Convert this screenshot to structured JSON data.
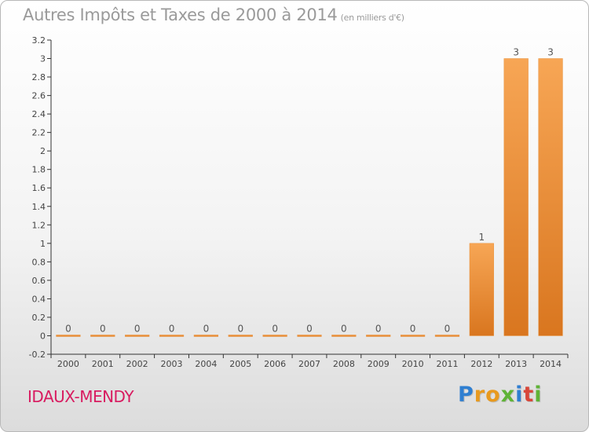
{
  "header": {
    "title": "Autres Impôts et Taxes de 2000 à 2014",
    "subtitle": "(en milliers d'€)"
  },
  "footer": {
    "commune": "IDAUX-MENDY",
    "logo_letters": [
      "P",
      "r",
      "o",
      "x",
      "i",
      "t",
      "i"
    ],
    "logo_colors": [
      "#2f7fd1",
      "#e89a1f",
      "#e89a1f",
      "#5fb336",
      "#2f7fd1",
      "#d8473a",
      "#5fb336"
    ]
  },
  "chart_data": {
    "type": "bar",
    "title": "Autres Impôts et Taxes de 2000 à 2014",
    "categories": [
      "2000",
      "2001",
      "2002",
      "2003",
      "2004",
      "2005",
      "2006",
      "2007",
      "2008",
      "2009",
      "2010",
      "2011",
      "2012",
      "2013",
      "2014"
    ],
    "values": [
      0,
      0,
      0,
      0,
      0,
      0,
      0,
      0,
      0,
      0,
      0,
      0,
      1,
      3,
      3
    ],
    "value_labels": [
      "0",
      "0",
      "0",
      "0",
      "0",
      "0",
      "0",
      "0",
      "0",
      "0",
      "0",
      "0",
      "1",
      "3",
      "3"
    ],
    "ylim": [
      -0.2,
      3.2
    ],
    "yticks": [
      -0.2,
      0,
      0.2,
      0.4,
      0.6,
      0.8,
      1,
      1.2,
      1.4,
      1.6,
      1.8,
      2,
      2.2,
      2.4,
      2.6,
      2.8,
      3,
      3.2
    ],
    "ytick_labels": [
      "-0.2",
      "0",
      "0.2",
      "0.4",
      "0.6",
      "0.8",
      "1",
      "1.2",
      "1.4",
      "1.6",
      "1.8",
      "2",
      "2.2",
      "2.4",
      "2.6",
      "2.8",
      "3",
      "3.2"
    ],
    "bar_color_light": "#f7a655",
    "bar_color_dark": "#d9761f",
    "grid": false,
    "legend": false
  }
}
